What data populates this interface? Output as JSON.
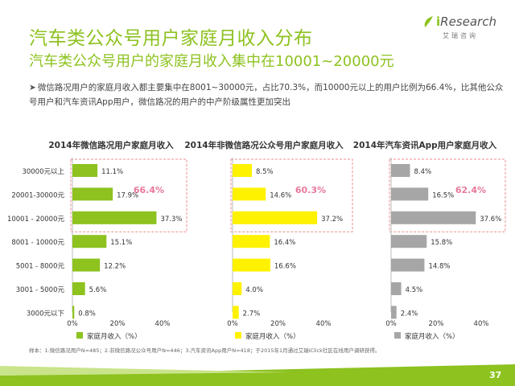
{
  "title": "汽车类公众号用户家庭月收入分布",
  "subtitle": "汽车类公众号用户的家庭月收入集中在10001~20000元",
  "summary": "微信路况用户的家庭月收入都主要集中在8001~30000元，占比70.3%，而10000元以上的用户比例为66.4%，比其他公众号用户和汽车资讯App用户，微信路况的用户的中产阶级属性更加突出",
  "logo": {
    "brand_i": "i",
    "brand_rest": "Research",
    "cn": "艾瑞咨询"
  },
  "footnote": "样本：1.微信路况用户N=485；2.非微信路况公众号用户N=446；3.汽车资讯App用户N=418；于2015年1月通过艾瑞iClick社区在线用户调研获得。",
  "page_number": "37",
  "colors": {
    "green": "#8dc21f",
    "yellow": "#fff200",
    "gray": "#a6a6a6",
    "highlight": "#f08c8c",
    "accent_text": "#e8789a"
  },
  "chart_data": [
    {
      "type": "bar",
      "orientation": "horizontal",
      "title": "2014年微信路况用户家庭月收入",
      "categories": [
        "30000元以上",
        "20001-30000元",
        "10001 - 20000元",
        "8001 - 10000元",
        "5001 - 8000元",
        "3001 - 5000元",
        "3000元以下"
      ],
      "series": [
        {
          "name": "家庭月收入（%）",
          "values": [
            11.1,
            17.9,
            37.3,
            15.1,
            12.2,
            5.6,
            0.8
          ]
        }
      ],
      "value_labels": [
        "11.1%",
        "17.9%",
        "37.3%",
        "15.1%",
        "12.2%",
        "5.6%",
        "0.8%"
      ],
      "xlim": [
        0,
        40
      ],
      "xticks": [
        "0%",
        "20%",
        "40%"
      ],
      "highlight_label": "66.4%",
      "color": "#8dc21f"
    },
    {
      "type": "bar",
      "orientation": "horizontal",
      "title": "2014年非微信路况公众号用户家庭月收入",
      "categories": [
        "30000元以上",
        "20001-30000元",
        "10001 - 20000元",
        "8001 - 10000元",
        "5001 - 8000元",
        "3001 - 5000元",
        "3000元以下"
      ],
      "series": [
        {
          "name": "家庭月收入（%）",
          "values": [
            8.5,
            14.6,
            37.2,
            16.4,
            16.6,
            4.0,
            2.7
          ]
        }
      ],
      "value_labels": [
        "8.5%",
        "14.6%",
        "37.2%",
        "16.4%",
        "16.6%",
        "4.0%",
        "2.7%"
      ],
      "xlim": [
        0,
        40
      ],
      "xticks": [
        "0%",
        "20%",
        "40%"
      ],
      "highlight_label": "60.3%",
      "color": "#fff200"
    },
    {
      "type": "bar",
      "orientation": "horizontal",
      "title": "2014年汽车资讯App用户家庭月收入",
      "categories": [
        "30000元以上",
        "20001-30000元",
        "10001 - 20000元",
        "8001 - 10000元",
        "5001 - 8000元",
        "3001 - 5000元",
        "3000元以下"
      ],
      "series": [
        {
          "name": "家庭月收入（%）",
          "values": [
            8.4,
            16.5,
            37.6,
            15.8,
            14.8,
            4.5,
            2.4
          ]
        }
      ],
      "value_labels": [
        "8.4%",
        "16.5%",
        "37.6%",
        "15.8%",
        "14.8%",
        "4.5%",
        "2.4%"
      ],
      "xlim": [
        0,
        40
      ],
      "xticks": [
        "0%",
        "20%",
        "40%"
      ],
      "highlight_label": "62.4%",
      "color": "#a6a6a6"
    }
  ]
}
